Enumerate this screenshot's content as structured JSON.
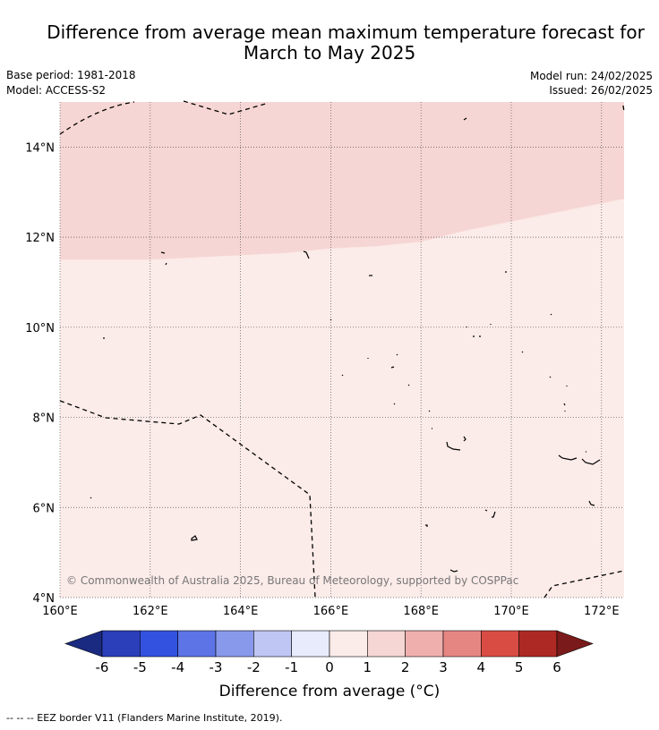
{
  "header": {
    "title_line1": "Difference from average mean maximum temperature forecast for",
    "title_line2": "March to May 2025",
    "base_period": "Base period: 1981-2018",
    "model": "Model: ACCESS-S2",
    "model_run": "Model run: 24/02/2025",
    "issued": "Issued: 26/02/2025"
  },
  "map": {
    "lon_range": [
      160,
      172.5
    ],
    "lat_range": [
      4,
      15
    ],
    "x_ticks": [
      "160°E",
      "162°E",
      "164°E",
      "166°E",
      "168°E",
      "170°E",
      "172°E"
    ],
    "y_ticks": [
      "4°N",
      "6°N",
      "8°N",
      "10°N",
      "12°N",
      "14°N"
    ],
    "gridlines": true,
    "watermark": "© Commonwealth of Australia 2025, Bureau of Meteorology, supported by COSPPac",
    "regions": [
      {
        "name": "anomaly 1 to 2 °C",
        "category": "1 to 2",
        "color": "#f6d6d4"
      },
      {
        "name": "anomaly 0 to 1 °C",
        "category": "0 to 1",
        "color": "#fbebe9"
      }
    ],
    "boundary_color": "#f6d6d4",
    "region_boundary_lon_lat": [
      [
        160,
        11.5
      ],
      [
        161,
        11.5
      ],
      [
        162,
        11.5
      ],
      [
        163,
        11.55
      ],
      [
        164,
        11.6
      ],
      [
        165,
        11.65
      ],
      [
        166,
        11.75
      ],
      [
        167,
        11.8
      ],
      [
        168,
        11.9
      ],
      [
        169,
        12.15
      ],
      [
        170,
        12.35
      ],
      [
        171,
        12.55
      ],
      [
        172,
        12.75
      ],
      [
        172.5,
        12.85
      ]
    ]
  },
  "colorbar": {
    "colors": [
      "#1a2a80",
      "#2b3fba",
      "#3352e0",
      "#5c74e6",
      "#8899ec",
      "#bfc6f3",
      "#e8ebfb",
      "#fbebe9",
      "#f6d6d4",
      "#efb0ad",
      "#e68683",
      "#d94c44",
      "#ad2a24",
      "#7a1a1a"
    ],
    "tick_labels": [
      "-6",
      "-5",
      "-4",
      "-3",
      "-2",
      "-1",
      "0",
      "1",
      "2",
      "3",
      "4",
      "5",
      "6"
    ],
    "label": "Difference from average (°C)"
  },
  "footer": {
    "legend_text": "--  --  -- EEZ border V11 (Flanders Marine Institute, 2019)."
  }
}
